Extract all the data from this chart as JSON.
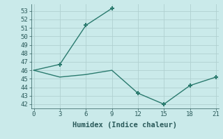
{
  "line1_x": [
    0,
    3,
    6,
    9
  ],
  "line1_y": [
    46.0,
    46.7,
    51.3,
    53.3
  ],
  "line2_x": [
    0,
    3,
    6,
    9,
    12,
    15,
    18,
    21
  ],
  "line2_y": [
    46.0,
    45.2,
    45.5,
    46.0,
    43.3,
    42.0,
    44.2,
    45.2
  ],
  "line_color": "#2a7a6e",
  "bg_color": "#caeaea",
  "grid_color": "#b0d0d0",
  "xlabel": "Humidex (Indice chaleur)",
  "ylim": [
    41.5,
    53.8
  ],
  "xlim": [
    -0.3,
    21.3
  ],
  "yticks": [
    42,
    43,
    44,
    45,
    46,
    47,
    48,
    49,
    50,
    51,
    52,
    53
  ],
  "xticks": [
    0,
    3,
    6,
    9,
    12,
    15,
    18,
    21
  ],
  "font_color": "#2a5a5a",
  "marker_size": 5,
  "line_width": 1.0
}
